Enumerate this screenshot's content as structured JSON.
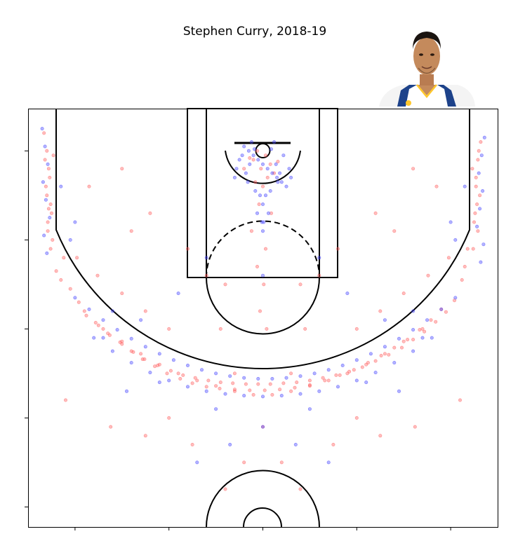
{
  "chart_data": {
    "type": "scatter",
    "title": "Stephen Curry, 2018-19",
    "xlabel": "",
    "ylabel": "",
    "xlim": [
      -250,
      250
    ],
    "ylim": [
      422.5,
      -47.5
    ],
    "xticks": [
      -200,
      -100,
      0,
      100,
      200
    ],
    "yticks": [
      0,
      100,
      200,
      300,
      400
    ],
    "grid": false,
    "legend": "none",
    "colors": {
      "made": "#ff5a5a",
      "missed": "#4040ff",
      "court_lines": "#000000"
    },
    "marker_alpha": 0.4,
    "player_photo": "headshot-image",
    "series": [
      {
        "result": "made",
        "x": [
          -233,
          -230,
          -228,
          -231,
          -226,
          -229,
          -224,
          -232,
          -227,
          -230,
          -225,
          -229,
          -226,
          -223,
          -228,
          232,
          229,
          227,
          231,
          226,
          229,
          224,
          230,
          227,
          225,
          228,
          223,
          -205,
          -196,
          -188,
          -175,
          -163,
          -150,
          -138,
          -126,
          -112,
          -98,
          -85,
          -72,
          -58,
          -45,
          -32,
          -18,
          -5,
          8,
          22,
          36,
          50,
          64,
          78,
          92,
          106,
          120,
          134,
          148,
          160,
          172,
          184,
          195,
          204,
          -190,
          -178,
          -165,
          -152,
          -140,
          -128,
          -115,
          -102,
          -88,
          -75,
          -60,
          -46,
          -30,
          -14,
          2,
          18,
          34,
          50,
          66,
          82,
          97,
          112,
          126,
          140,
          154,
          167,
          179,
          190,
          -170,
          -150,
          -130,
          -110,
          -90,
          -70,
          -50,
          -30,
          -10,
          10,
          30,
          50,
          70,
          90,
          110,
          130,
          150,
          170,
          -220,
          -215,
          -212,
          215,
          212,
          218,
          -6,
          3,
          -10,
          8,
          -2,
          12,
          -14,
          5,
          -8,
          0,
          -20,
          16,
          -4,
          9,
          -12,
          3,
          -6,
          1,
          -3,
          4,
          -150,
          -120,
          -80,
          -40,
          40,
          80,
          120,
          160,
          -185,
          -140,
          -60,
          60,
          140,
          185,
          -100,
          100,
          -210,
          210,
          -162,
          162,
          -125,
          125,
          -75,
          75,
          0,
          -30,
          30,
          -45,
          45,
          198,
          176,
          150,
          125,
          100,
          -198,
          -176,
          -150,
          -125,
          -100,
          40,
          -40,
          20,
          -20
        ],
        "y": [
          -20,
          0,
          20,
          40,
          60,
          80,
          100,
          10,
          30,
          50,
          70,
          90,
          110,
          5,
          65,
          -10,
          10,
          30,
          50,
          70,
          90,
          110,
          0,
          40,
          80,
          60,
          20,
          155,
          170,
          185,
          196,
          207,
          217,
          226,
          234,
          241,
          247,
          252,
          255,
          258,
          260,
          261,
          262,
          262,
          262,
          261,
          260,
          258,
          255,
          252,
          248,
          243,
          236,
          229,
          221,
          212,
          203,
          192,
          181,
          168,
          180,
          193,
          205,
          215,
          225,
          234,
          242,
          250,
          256,
          261,
          265,
          267,
          268,
          269,
          269,
          268,
          266,
          263,
          258,
          252,
          246,
          238,
          230,
          221,
          212,
          201,
          190,
          178,
          200,
          214,
          228,
          240,
          250,
          258,
          264,
          270,
          274,
          274,
          270,
          264,
          258,
          250,
          240,
          228,
          214,
          200,
          135,
          145,
          120,
          130,
          145,
          110,
          0,
          5,
          10,
          15,
          20,
          25,
          8,
          30,
          35,
          40,
          20,
          12,
          60,
          70,
          90,
          110,
          130,
          150,
          180,
          200,
          20,
          70,
          110,
          150,
          150,
          110,
          70,
          20,
          40,
          90,
          140,
          140,
          90,
          40,
          300,
          300,
          280,
          280,
          310,
          310,
          320,
          320,
          330,
          330,
          310,
          250,
          250,
          200,
          200,
          120,
          140,
          160,
          180,
          200,
          120,
          140,
          160,
          180,
          200,
          380,
          380,
          350,
          350
        ]
      },
      {
        "result": "missed",
        "x": [
          -235,
          -232,
          -229,
          -234,
          -231,
          -227,
          -233,
          -230,
          236,
          233,
          230,
          234,
          231,
          228,
          235,
          232,
          -200,
          -185,
          -170,
          -155,
          -140,
          -125,
          -110,
          -95,
          -80,
          -65,
          -50,
          -35,
          -20,
          -5,
          10,
          25,
          40,
          55,
          70,
          85,
          100,
          115,
          130,
          145,
          160,
          175,
          190,
          205,
          -180,
          -160,
          -140,
          -120,
          -100,
          -80,
          -60,
          -40,
          -20,
          0,
          20,
          40,
          60,
          80,
          100,
          120,
          140,
          160,
          180,
          -20,
          -15,
          -10,
          -5,
          0,
          5,
          10,
          15,
          20,
          25,
          -25,
          -12,
          -8,
          8,
          12,
          -18,
          18,
          -3,
          3,
          0,
          -6,
          6,
          -14,
          14,
          -22,
          22,
          -30,
          30,
          -28,
          28,
          -9,
          9,
          -16,
          16,
          -1,
          1,
          -60,
          60,
          -90,
          90,
          -130,
          130,
          -170,
          170,
          -215,
          215,
          -205,
          205,
          -160,
          160,
          -110,
          110,
          -50,
          50,
          0,
          -35,
          35,
          -200,
          200,
          -145,
          145,
          0,
          0,
          -70,
          70
        ],
        "y": [
          -25,
          -5,
          15,
          35,
          55,
          75,
          95,
          115,
          -15,
          5,
          25,
          45,
          65,
          85,
          105,
          125,
          165,
          178,
          190,
          201,
          211,
          220,
          228,
          235,
          241,
          246,
          250,
          253,
          255,
          256,
          256,
          255,
          253,
          250,
          246,
          241,
          235,
          228,
          220,
          211,
          201,
          190,
          178,
          165,
          210,
          225,
          238,
          249,
          258,
          265,
          270,
          273,
          275,
          276,
          275,
          273,
          270,
          265,
          258,
          249,
          238,
          225,
          210,
          -5,
          0,
          5,
          10,
          15,
          20,
          25,
          30,
          35,
          40,
          10,
          -10,
          45,
          45,
          -10,
          25,
          25,
          50,
          50,
          60,
          70,
          70,
          15,
          15,
          5,
          5,
          30,
          30,
          20,
          20,
          -2,
          -2,
          35,
          35,
          80,
          80,
          120,
          120,
          160,
          160,
          190,
          190,
          210,
          210,
          40,
          40,
          100,
          100,
          180,
          180,
          260,
          260,
          290,
          290,
          310,
          330,
          330,
          80,
          80,
          270,
          270,
          90,
          140,
          350,
          350
        ]
      }
    ]
  }
}
